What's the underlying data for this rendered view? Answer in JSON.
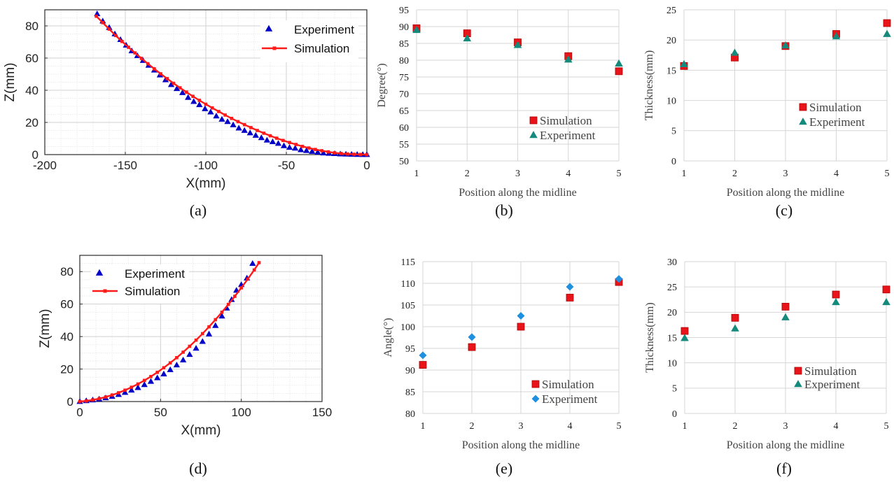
{
  "colors": {
    "experiment_blue": "#0000c8",
    "simulation_red": "#ff1a1a",
    "square_fill": "#e8141a",
    "square_edge": "#c00000",
    "triangle_green": "#138a7c",
    "diamond_blue": "#1f8fe0"
  },
  "chart_data": [
    {
      "id": "a",
      "type": "line",
      "panel_label": "(a)",
      "xlabel": "X(mm)",
      "ylabel": "Z(mm)",
      "xlim": [
        -200,
        0
      ],
      "ylim": [
        0,
        90
      ],
      "xticks": [
        -200,
        -150,
        -100,
        -50,
        0
      ],
      "yticks": [
        0,
        20,
        40,
        60,
        80
      ],
      "grid": true,
      "legend_position": "top-right",
      "series": [
        {
          "name": "Experiment",
          "marker": "triangle",
          "color": "#0000c8",
          "x": [
            -167.5,
            -164,
            -160,
            -156.5,
            -153,
            -149.5,
            -146,
            -142.5,
            -139,
            -135.5,
            -132,
            -128.5,
            -125,
            -121.5,
            -118,
            -114.5,
            -111,
            -107.5,
            -104,
            -100.5,
            -97,
            -93.5,
            -90,
            -86.5,
            -83,
            -79.5,
            -76,
            -72.5,
            -69,
            -65.5,
            -62,
            -58.5,
            -55,
            -51.5,
            -48,
            -44.5,
            -41,
            -37.5,
            -34,
            -30.5,
            -27,
            -23.5,
            -20,
            -16.5,
            -13,
            -9.5,
            -6,
            -2.5,
            0
          ],
          "y": [
            87.5,
            83,
            79,
            75,
            71.5,
            68,
            64.5,
            61.5,
            58.5,
            55.5,
            52.5,
            49.5,
            46.5,
            43.5,
            41,
            38.5,
            35.5,
            33,
            31,
            28.5,
            26.5,
            24,
            22,
            20.5,
            18.5,
            16.5,
            15,
            13.5,
            12,
            10.5,
            9,
            8,
            7,
            5.5,
            4.5,
            4,
            3,
            2.5,
            2,
            1.5,
            1,
            0.8,
            0.6,
            0.4,
            0.3,
            0.2,
            0.1,
            0,
            0
          ]
        },
        {
          "name": "Simulation",
          "marker": "square-line",
          "color": "#ff1a1a",
          "x": [
            -168,
            -164,
            -160,
            -156,
            -152,
            -148,
            -144,
            -140,
            -136,
            -132,
            -128,
            -124,
            -120,
            -116,
            -112,
            -108,
            -104,
            -100,
            -96,
            -92,
            -88,
            -84,
            -80,
            -76,
            -72,
            -68,
            -64,
            -60,
            -56,
            -52,
            -48,
            -44,
            -40,
            -36,
            -32,
            -28,
            -24,
            -20,
            -16,
            -12,
            -8,
            -4,
            0
          ],
          "y": [
            86,
            82,
            78,
            74,
            70.3,
            66.7,
            63.2,
            59.8,
            56.5,
            53.3,
            50.2,
            47.2,
            44.3,
            41.5,
            38.8,
            36.2,
            33.7,
            31.3,
            29,
            26.8,
            24.6,
            22.5,
            20.5,
            18.6,
            16.8,
            15,
            13.3,
            11.7,
            10.2,
            8.8,
            7.5,
            6.3,
            5.1,
            4.1,
            3.2,
            2.4,
            1.7,
            1.1,
            0.7,
            0.4,
            0.2,
            0.1,
            0
          ]
        }
      ]
    },
    {
      "id": "b",
      "type": "scatter",
      "panel_label": "(b)",
      "xlabel": "Position along the midline",
      "ylabel": "Degree(°)",
      "xlim": [
        1,
        5
      ],
      "ylim": [
        50,
        95
      ],
      "xticks": [
        1,
        2,
        3,
        4,
        5
      ],
      "yticks": [
        50,
        55,
        60,
        65,
        70,
        75,
        80,
        85,
        90,
        95
      ],
      "grid": true,
      "legend_position": "bottom-right",
      "series": [
        {
          "name": "Simulation",
          "marker": "square",
          "color": "#e8141a",
          "x": [
            1,
            2,
            3,
            4,
            5
          ],
          "y": [
            89.5,
            88,
            85.3,
            81.2,
            76.7
          ]
        },
        {
          "name": "Experiment",
          "marker": "triangle",
          "color": "#138a7c",
          "x": [
            1,
            2,
            3,
            4,
            5
          ],
          "y": [
            89,
            86.5,
            84.5,
            80.2,
            79
          ]
        }
      ]
    },
    {
      "id": "c",
      "type": "scatter",
      "panel_label": "(c)",
      "xlabel": "Position along the midline",
      "ylabel": "Thickness(mm)",
      "xlim": [
        1,
        5
      ],
      "ylim": [
        0,
        25
      ],
      "xticks": [
        1,
        2,
        3,
        4,
        5
      ],
      "yticks": [
        0,
        5,
        10,
        15,
        20,
        25
      ],
      "grid": true,
      "legend_position": "center-right",
      "series": [
        {
          "name": "Simulation",
          "marker": "square",
          "color": "#e8141a",
          "x": [
            1,
            2,
            3,
            4,
            5
          ],
          "y": [
            15.7,
            17.1,
            19,
            21,
            22.8
          ]
        },
        {
          "name": "Experiment",
          "marker": "triangle",
          "color": "#138a7c",
          "x": [
            1,
            2,
            3,
            4,
            5
          ],
          "y": [
            16,
            17.9,
            19.1,
            20.6,
            21
          ]
        }
      ]
    },
    {
      "id": "d",
      "type": "line",
      "panel_label": "(d)",
      "xlabel": "X(mm)",
      "ylabel": "Z(mm)",
      "xlim": [
        0,
        150
      ],
      "ylim": [
        0,
        90
      ],
      "xticks": [
        0,
        50,
        100,
        150
      ],
      "yticks": [
        0,
        20,
        40,
        60,
        80
      ],
      "grid": true,
      "legend_position": "top-left",
      "series": [
        {
          "name": "Experiment",
          "marker": "triangle",
          "color": "#0000c8",
          "x": [
            0,
            4,
            8,
            12,
            16,
            20,
            24,
            28,
            32,
            36,
            40,
            44,
            48,
            52,
            56,
            60,
            64,
            68,
            72,
            76,
            80,
            84,
            88,
            91,
            94,
            97,
            100,
            103.5,
            107
          ],
          "y": [
            0,
            0.5,
            1,
            1.5,
            2.3,
            3.2,
            4.3,
            5.6,
            7,
            8.6,
            10.4,
            12.4,
            14.6,
            17,
            19.6,
            22.5,
            25.6,
            29,
            32.8,
            37,
            41.6,
            46.8,
            52.6,
            57.5,
            62.8,
            68.5,
            72,
            76,
            85
          ]
        },
        {
          "name": "Simulation",
          "marker": "square-line",
          "color": "#ff1a1a",
          "x": [
            0,
            4,
            8,
            12,
            16,
            20,
            24,
            28,
            32,
            36,
            40,
            44,
            48,
            52,
            56,
            60,
            64,
            68,
            72,
            76,
            80,
            84,
            88,
            92,
            96,
            100,
            104,
            108,
            111
          ],
          "y": [
            0,
            0.4,
            1,
            1.8,
            2.8,
            4,
            5.4,
            7,
            8.8,
            10.8,
            13,
            15.4,
            18,
            20.8,
            23.8,
            27,
            30.4,
            34,
            37.8,
            41.8,
            46,
            50.4,
            55,
            59.8,
            64.8,
            70,
            75.4,
            81,
            85.5
          ]
        }
      ]
    },
    {
      "id": "e",
      "type": "scatter",
      "panel_label": "(e)",
      "xlabel": "Position along the midline",
      "ylabel": "Angle(°)",
      "xlim": [
        1,
        5
      ],
      "ylim": [
        80,
        115
      ],
      "xticks": [
        1,
        2,
        3,
        4,
        5
      ],
      "yticks": [
        80,
        85,
        90,
        95,
        100,
        105,
        110,
        115
      ],
      "grid": true,
      "legend_position": "bottom-right",
      "series": [
        {
          "name": "Simulation",
          "marker": "square",
          "color": "#e8141a",
          "x": [
            1,
            2,
            3,
            4,
            5
          ],
          "y": [
            91.2,
            95.3,
            100,
            106.7,
            110.3
          ]
        },
        {
          "name": "Experiment",
          "marker": "diamond",
          "color": "#1f8fe0",
          "x": [
            1,
            2,
            3,
            4,
            5
          ],
          "y": [
            93.4,
            97.6,
            102.5,
            109.2,
            111
          ]
        }
      ]
    },
    {
      "id": "f",
      "type": "scatter",
      "panel_label": "(f)",
      "xlabel": "Position along the midline",
      "ylabel": "Thickness(mm)",
      "xlim": [
        1,
        5
      ],
      "ylim": [
        0,
        30
      ],
      "xticks": [
        1,
        2,
        3,
        4,
        5
      ],
      "yticks": [
        0,
        5,
        10,
        15,
        20,
        25,
        30
      ],
      "grid": true,
      "legend_position": "bottom-right",
      "series": [
        {
          "name": "Simulation",
          "marker": "square",
          "color": "#e8141a",
          "x": [
            1,
            2,
            3,
            4,
            5
          ],
          "y": [
            16.3,
            18.9,
            21.1,
            23.5,
            24.5
          ]
        },
        {
          "name": "Experiment",
          "marker": "triangle",
          "color": "#138a7c",
          "x": [
            1,
            2,
            3,
            4,
            5
          ],
          "y": [
            14.9,
            16.8,
            19,
            22,
            22
          ]
        }
      ]
    }
  ]
}
